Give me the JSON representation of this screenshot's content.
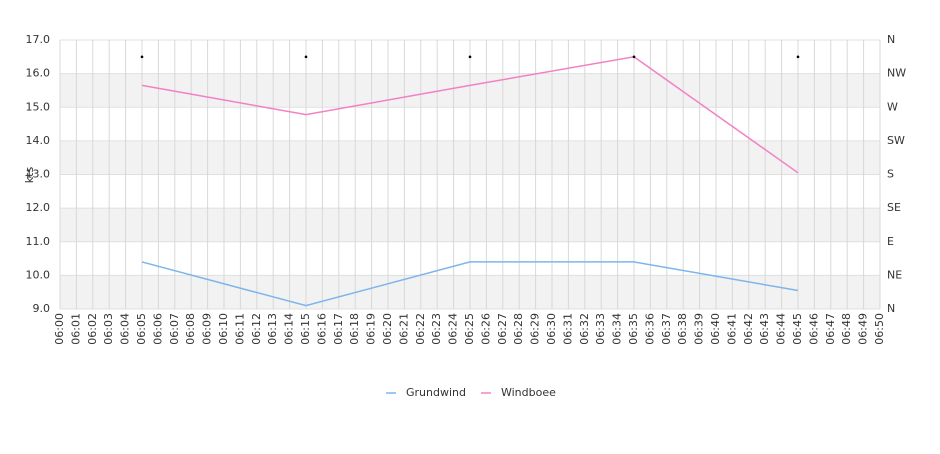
{
  "chart_data": {
    "type": "line",
    "y_label": "kts",
    "categories": [
      "06:00",
      "06:01",
      "06:02",
      "06:03",
      "06:04",
      "06:05",
      "06:06",
      "06:07",
      "06:08",
      "06:09",
      "06:10",
      "06:11",
      "06:12",
      "06:13",
      "06:14",
      "06:15",
      "06:16",
      "06:17",
      "06:18",
      "06:19",
      "06:20",
      "06:21",
      "06:22",
      "06:23",
      "06:24",
      "06:25",
      "06:26",
      "06:27",
      "06:28",
      "06:29",
      "06:30",
      "06:31",
      "06:32",
      "06:33",
      "06:34",
      "06:35",
      "06:36",
      "06:37",
      "06:38",
      "06:39",
      "06:40",
      "06:41",
      "06:42",
      "06:43",
      "06:44",
      "06:45",
      "06:46",
      "06:47",
      "06:48",
      "06:49",
      "06:50"
    ],
    "series": [
      {
        "name": "Grundwind",
        "color": "#7cb5ec",
        "x": [
          "06:05",
          "06:15",
          "06:25",
          "06:35",
          "06:45"
        ],
        "values": [
          10.4,
          9.1,
          10.4,
          10.4,
          9.55
        ]
      },
      {
        "name": "Windboee",
        "color": "#f281c4",
        "x": [
          "06:05",
          "06:15",
          "06:25",
          "06:35",
          "06:45"
        ],
        "values": [
          15.65,
          14.78,
          15.65,
          16.5,
          13.05
        ]
      },
      {
        "color": "#000000",
        "axis": "y2",
        "x": [
          "06:05",
          "06:15",
          "06:25",
          "06:35",
          "06:45"
        ],
        "values": [
          337.5,
          337.5,
          337.5,
          337.5,
          337.5
        ]
      }
    ],
    "ylim": [
      9,
      17
    ],
    "yticks": [
      {
        "value": 9,
        "label": "9.0"
      },
      {
        "value": 10,
        "label": "10.0"
      },
      {
        "value": 11,
        "label": "11.0"
      },
      {
        "value": 12,
        "label": "12.0"
      },
      {
        "value": 13,
        "label": "13.0"
      },
      {
        "value": 14,
        "label": "14.0"
      },
      {
        "value": 15,
        "label": "15.0"
      },
      {
        "value": 16,
        "label": "16.0"
      },
      {
        "value": 17,
        "label": "17.0"
      }
    ],
    "y2lim": [
      0,
      360
    ],
    "y2ticks": [
      {
        "value": 0,
        "label": "N"
      },
      {
        "value": 45,
        "label": "NE"
      },
      {
        "value": 90,
        "label": "E"
      },
      {
        "value": 135,
        "label": "SE"
      },
      {
        "value": 180,
        "label": "S"
      },
      {
        "value": 225,
        "label": "SW"
      },
      {
        "value": 270,
        "label": "W"
      },
      {
        "value": 315,
        "label": "NW"
      },
      {
        "value": 360,
        "label": "N"
      }
    ],
    "grid": true
  }
}
